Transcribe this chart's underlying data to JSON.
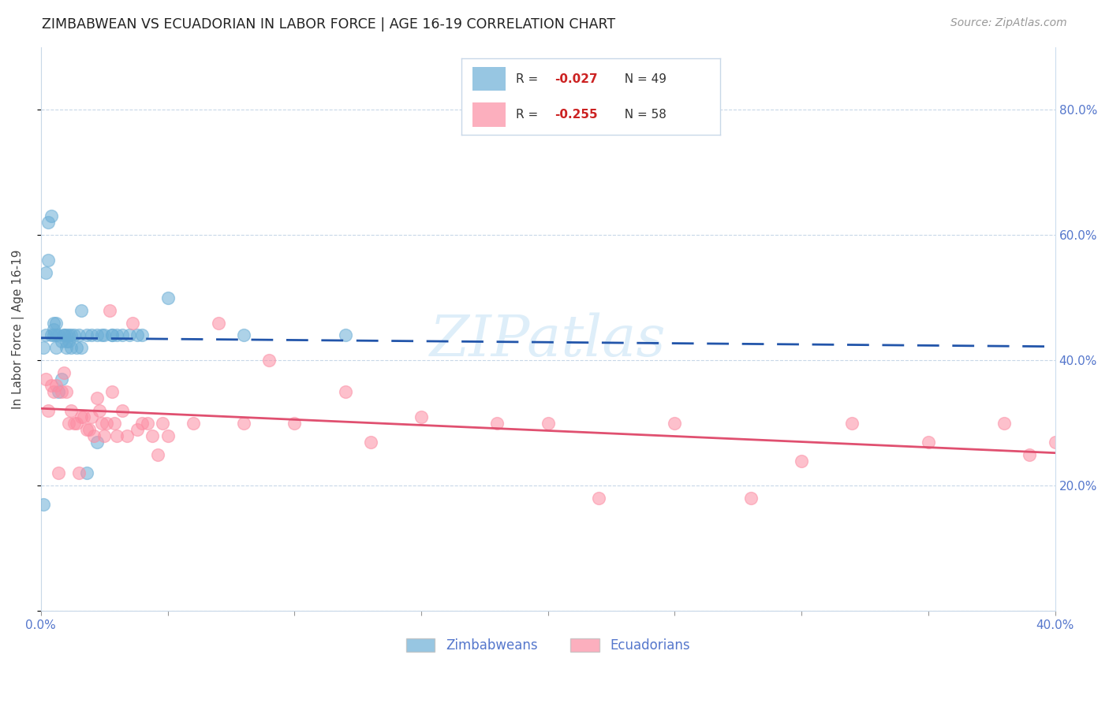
{
  "title": "ZIMBABWEAN VS ECUADORIAN IN LABOR FORCE | AGE 16-19 CORRELATION CHART",
  "source": "Source: ZipAtlas.com",
  "ylabel": "In Labor Force | Age 16-19",
  "xlim": [
    0.0,
    0.4
  ],
  "ylim": [
    0.0,
    0.9
  ],
  "legend_text_blue": "R = -0.027   N = 49",
  "legend_text_pink": "R = -0.255   N = 58",
  "blue_color": "#6baed6",
  "pink_color": "#fc8da3",
  "trendline_blue_color": "#2255aa",
  "trendline_pink_color": "#e05070",
  "watermark": "ZIPatlas",
  "zimbabwean_x": [
    0.001,
    0.001,
    0.002,
    0.002,
    0.003,
    0.003,
    0.004,
    0.004,
    0.005,
    0.005,
    0.005,
    0.006,
    0.006,
    0.006,
    0.007,
    0.007,
    0.008,
    0.008,
    0.009,
    0.009,
    0.01,
    0.01,
    0.01,
    0.011,
    0.011,
    0.012,
    0.012,
    0.013,
    0.014,
    0.015,
    0.016,
    0.016,
    0.018,
    0.018,
    0.02,
    0.022,
    0.022,
    0.024,
    0.025,
    0.028,
    0.028,
    0.03,
    0.032,
    0.035,
    0.038,
    0.04,
    0.05,
    0.08,
    0.12
  ],
  "zimbabwean_y": [
    0.17,
    0.42,
    0.44,
    0.54,
    0.56,
    0.62,
    0.63,
    0.44,
    0.45,
    0.46,
    0.44,
    0.44,
    0.46,
    0.42,
    0.44,
    0.35,
    0.37,
    0.43,
    0.44,
    0.44,
    0.43,
    0.44,
    0.42,
    0.43,
    0.44,
    0.44,
    0.42,
    0.44,
    0.42,
    0.44,
    0.48,
    0.42,
    0.44,
    0.22,
    0.44,
    0.44,
    0.27,
    0.44,
    0.44,
    0.44,
    0.44,
    0.44,
    0.44,
    0.44,
    0.44,
    0.44,
    0.5,
    0.44,
    0.44
  ],
  "ecuadorian_x": [
    0.002,
    0.003,
    0.004,
    0.005,
    0.006,
    0.007,
    0.008,
    0.009,
    0.01,
    0.011,
    0.012,
    0.013,
    0.014,
    0.015,
    0.016,
    0.017,
    0.018,
    0.019,
    0.02,
    0.021,
    0.022,
    0.023,
    0.024,
    0.025,
    0.026,
    0.027,
    0.028,
    0.029,
    0.03,
    0.032,
    0.034,
    0.036,
    0.038,
    0.04,
    0.042,
    0.044,
    0.046,
    0.048,
    0.05,
    0.06,
    0.07,
    0.08,
    0.09,
    0.1,
    0.12,
    0.13,
    0.15,
    0.18,
    0.2,
    0.22,
    0.25,
    0.28,
    0.3,
    0.32,
    0.35,
    0.38,
    0.39,
    0.4
  ],
  "ecuadorian_y": [
    0.37,
    0.32,
    0.36,
    0.35,
    0.36,
    0.22,
    0.35,
    0.38,
    0.35,
    0.3,
    0.32,
    0.3,
    0.3,
    0.22,
    0.31,
    0.31,
    0.29,
    0.29,
    0.31,
    0.28,
    0.34,
    0.32,
    0.3,
    0.28,
    0.3,
    0.48,
    0.35,
    0.3,
    0.28,
    0.32,
    0.28,
    0.46,
    0.29,
    0.3,
    0.3,
    0.28,
    0.25,
    0.3,
    0.28,
    0.3,
    0.46,
    0.3,
    0.4,
    0.3,
    0.35,
    0.27,
    0.31,
    0.3,
    0.3,
    0.18,
    0.3,
    0.18,
    0.24,
    0.3,
    0.27,
    0.3,
    0.25,
    0.27
  ]
}
